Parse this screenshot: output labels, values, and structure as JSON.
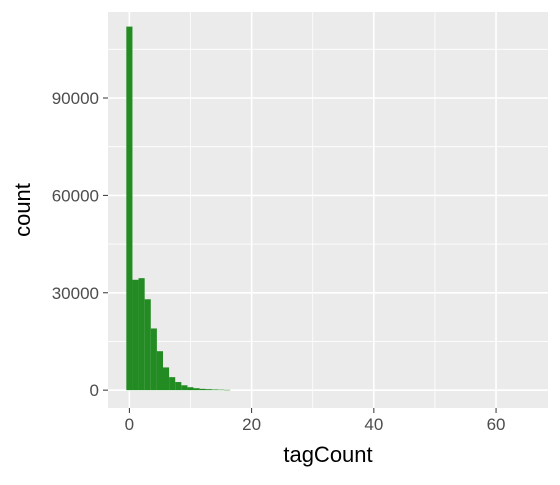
{
  "chart_data": {
    "type": "bar",
    "subtype": "histogram",
    "title": "",
    "xlabel": "tagCount",
    "ylabel": "count",
    "xlim": [
      -3.5,
      68.5
    ],
    "ylim": [
      -5500,
      116500
    ],
    "x_ticks": [
      0,
      20,
      40,
      60
    ],
    "x_tick_labels": [
      "0",
      "20",
      "40",
      "60"
    ],
    "y_ticks": [
      0,
      30000,
      60000,
      90000
    ],
    "y_tick_labels": [
      "0",
      "30000",
      "60000",
      "90000"
    ],
    "grid": true,
    "legend": "none",
    "bin_width": 1,
    "bins": [
      {
        "x": 0,
        "count": 112000
      },
      {
        "x": 1,
        "count": 34000
      },
      {
        "x": 2,
        "count": 34500
      },
      {
        "x": 3,
        "count": 28000
      },
      {
        "x": 4,
        "count": 19000
      },
      {
        "x": 5,
        "count": 12000
      },
      {
        "x": 6,
        "count": 7000
      },
      {
        "x": 7,
        "count": 4000
      },
      {
        "x": 8,
        "count": 2500
      },
      {
        "x": 9,
        "count": 1500
      },
      {
        "x": 10,
        "count": 900
      },
      {
        "x": 11,
        "count": 600
      },
      {
        "x": 12,
        "count": 400
      },
      {
        "x": 13,
        "count": 300
      },
      {
        "x": 14,
        "count": 200
      },
      {
        "x": 15,
        "count": 150
      },
      {
        "x": 16,
        "count": 100
      }
    ],
    "colors": {
      "fill": "#228B22",
      "panel": "#EBEBEB",
      "grid": "#FFFFFF",
      "axis_text": "#4D4D4D",
      "title_text": "#000000",
      "tick": "#333333"
    }
  }
}
